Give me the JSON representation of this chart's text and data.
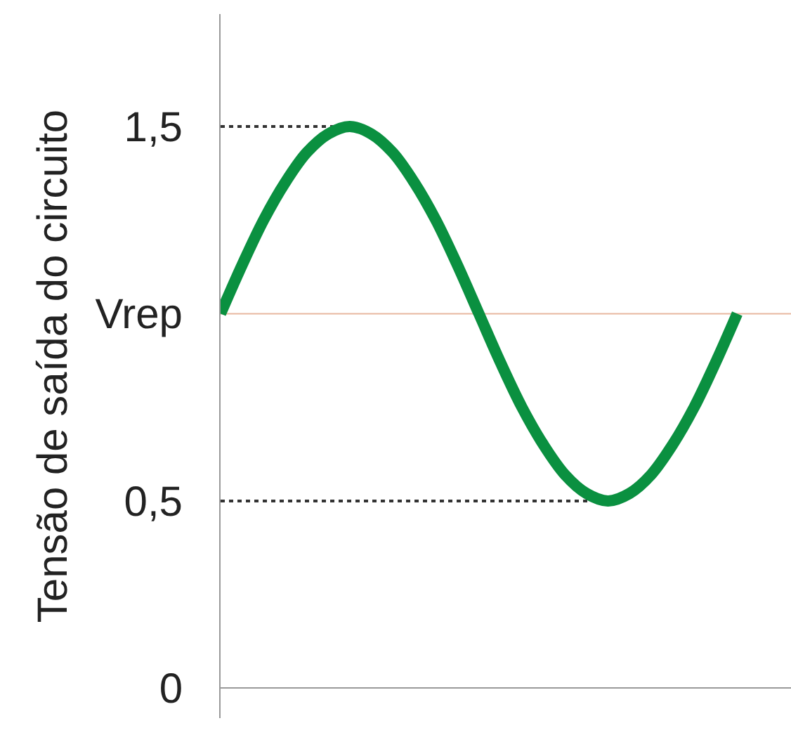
{
  "chart_data": {
    "type": "line",
    "ylabel": "Tensão de saída do circuito",
    "categories": [
      null,
      null,
      null,
      null,
      null,
      null,
      null,
      null,
      null,
      null,
      null,
      null,
      null,
      null,
      null,
      null,
      null,
      null,
      null,
      null,
      null,
      null,
      null,
      null,
      null
    ],
    "series": [
      {
        "color": "#0a9040",
        "values": [
          1,
          1.13,
          1.25,
          1.35,
          1.43,
          1.48,
          1.5,
          1.48,
          1.43,
          1.35,
          1.25,
          1.13,
          1,
          0.87,
          0.75,
          0.65,
          0.57,
          0.52,
          0.5,
          0.52,
          0.57,
          0.65,
          0.75,
          0.87,
          1
        ]
      }
    ],
    "ylim": [
      -0.08,
      1.8
    ],
    "yticks": [
      0,
      {
        "value": 0.5,
        "label": "0,5"
      },
      {
        "value": 1,
        "label": "Vrep"
      },
      {
        "value": 1.5,
        "label": "1,5"
      }
    ],
    "ref_lines": [
      {
        "axis": "y",
        "value": 1,
        "label": null,
        "color": "#e8b8a0",
        "line_style": "solid"
      },
      {
        "axis": "y",
        "value": 1.5,
        "label": null,
        "color": "#333333",
        "line_style": "dotted"
      },
      {
        "axis": "y",
        "value": 0.5,
        "label": null,
        "color": "#333333",
        "line_style": "dotted"
      }
    ],
    "line_style": "solid"
  }
}
